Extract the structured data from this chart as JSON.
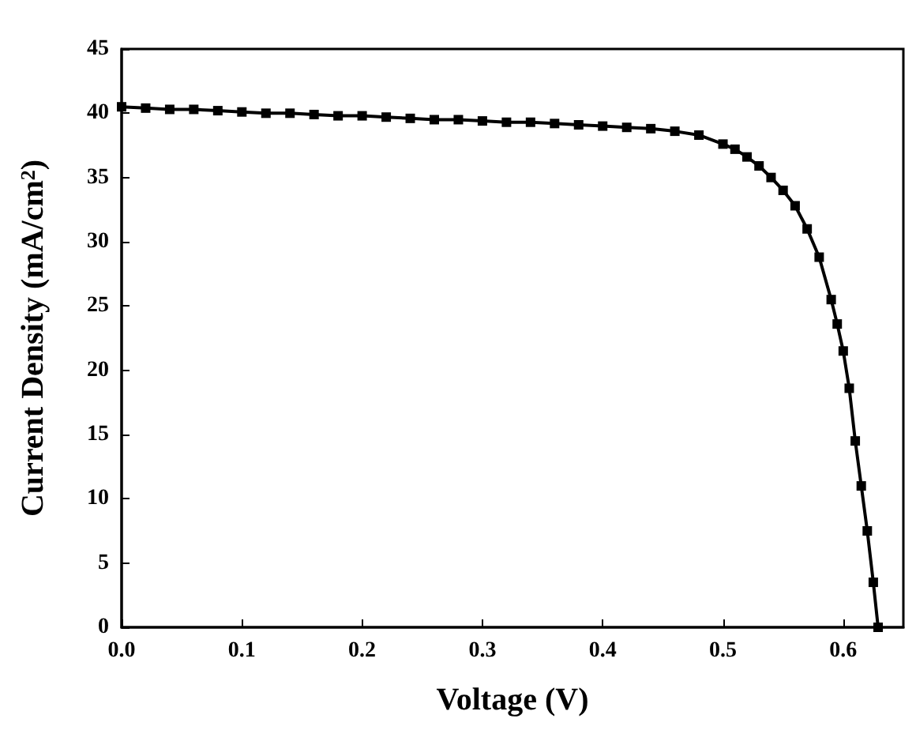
{
  "chart_data": {
    "type": "line",
    "xlabel": "Voltage (V)",
    "ylabel": "Current Density (mA/cm$^{2}$)",
    "x": [
      0,
      0.02,
      0.04,
      0.06,
      0.08,
      0.1,
      0.12,
      0.14,
      0.16,
      0.18,
      0.2,
      0.22,
      0.24,
      0.26,
      0.28,
      0.3,
      0.32,
      0.34,
      0.36,
      0.38,
      0.4,
      0.42,
      0.44,
      0.46,
      0.48,
      0.5,
      0.51,
      0.52,
      0.53,
      0.54,
      0.55,
      0.56,
      0.57,
      0.58,
      0.59,
      0.595,
      0.6,
      0.605,
      0.61,
      0.615,
      0.62,
      0.625,
      0.629
    ],
    "series": [
      {
        "color": "#000000",
        "values": [
          40.5,
          40.4,
          40.3,
          40.3,
          40.2,
          40.1,
          40.0,
          40.0,
          39.9,
          39.8,
          39.8,
          39.7,
          39.6,
          39.5,
          39.5,
          39.4,
          39.3,
          39.3,
          39.2,
          39.1,
          39.0,
          38.9,
          38.8,
          38.6,
          38.3,
          37.6,
          37.2,
          36.6,
          35.9,
          35.0,
          34.0,
          32.8,
          31.0,
          28.8,
          25.5,
          23.6,
          21.5,
          18.6,
          14.5,
          11.0,
          7.5,
          3.5,
          0
        ]
      }
    ],
    "xlim": [
      0,
      0.65
    ],
    "xticks": [
      {
        "value": 0,
        "label": "0.0"
      },
      0.1,
      0.2,
      0.3,
      0.4,
      0.5,
      0.6
    ],
    "ylim": [
      0,
      45
    ],
    "yticks": [
      0,
      5,
      10,
      15,
      20,
      25,
      30,
      35,
      40,
      45
    ],
    "marker": "square",
    "line_style": "solid",
    "grid": false
  }
}
